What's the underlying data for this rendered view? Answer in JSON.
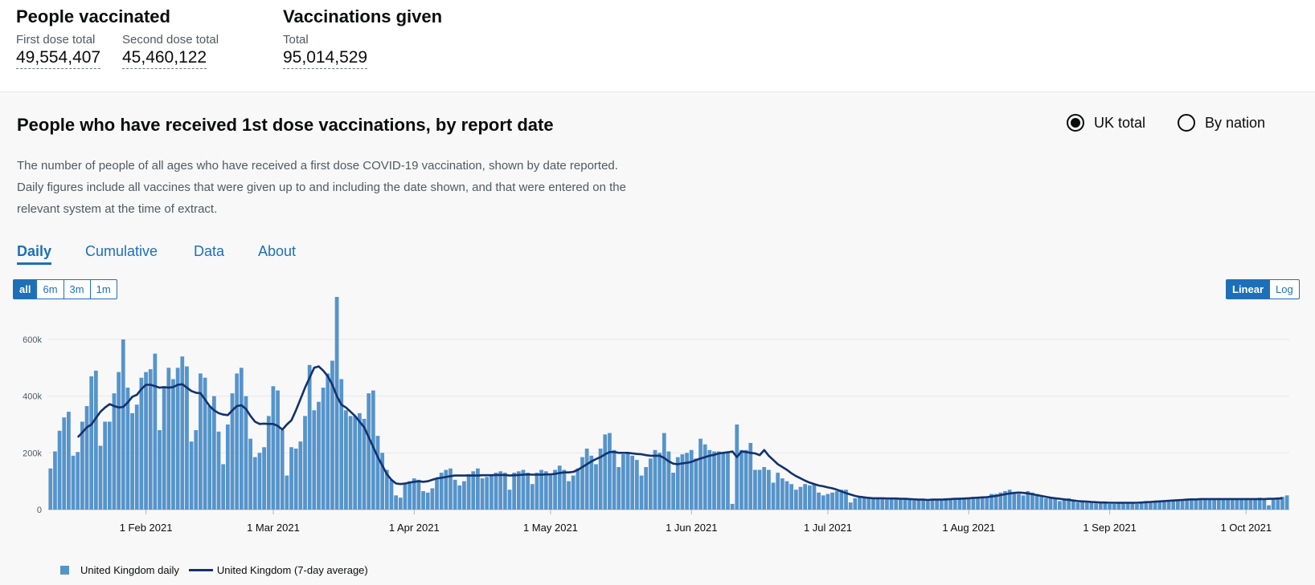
{
  "summary": {
    "people_title": "People vaccinated",
    "first_label": "First dose total",
    "first_value": "49,554,407",
    "second_label": "Second dose total",
    "second_value": "45,460,122",
    "given_title": "Vaccinations given",
    "total_label": "Total",
    "total_value": "95,014,529"
  },
  "card": {
    "title": "People who have received 1st dose vaccinations, by report date",
    "radio_uk": "UK total",
    "radio_nation": "By nation",
    "selected": "UK total",
    "description": "The number of people of all ages who have received a first dose COVID-19 vaccination, shown by date reported. Daily figures include all vaccines that were given up to and including the date shown, and that were entered on the relevant system at the time of extract.",
    "tabs": [
      "Daily",
      "Cumulative",
      "Data",
      "About"
    ],
    "range_buttons": [
      "all",
      "6m",
      "3m",
      "1m"
    ],
    "scale_buttons": [
      "Linear",
      "Log"
    ]
  },
  "colors": {
    "bar": "#5694ca",
    "line": "#12326e",
    "accent": "#1d70b8"
  },
  "chart_data": {
    "type": "bar",
    "start_date": "2021-01-11",
    "x_tick_labels": [
      "1 Feb 2021",
      "1 Mar 2021",
      "1 Apr 2021",
      "1 May 2021",
      "1 Jun 2021",
      "1 Jul 2021",
      "1 Aug 2021",
      "1 Sep 2021",
      "1 Oct 2021"
    ],
    "y_tick_labels": [
      "0",
      "200k",
      "400k",
      "600k"
    ],
    "ylim": [
      0,
      750000
    ],
    "grid": true,
    "legend_position": "bottom-left",
    "series": [
      {
        "name": "United Kingdom daily",
        "kind": "bar",
        "values": [
          145000,
          205000,
          278000,
          325000,
          345000,
          190000,
          203000,
          310000,
          365000,
          470000,
          490000,
          225000,
          310000,
          310000,
          410000,
          485000,
          600000,
          430000,
          340000,
          370000,
          465000,
          485000,
          495000,
          550000,
          280000,
          430000,
          500000,
          460000,
          500000,
          540000,
          505000,
          240000,
          280000,
          480000,
          465000,
          365000,
          400000,
          275000,
          160000,
          300000,
          410000,
          480000,
          500000,
          400000,
          250000,
          185000,
          200000,
          220000,
          330000,
          435000,
          420000,
          280000,
          120000,
          220000,
          215000,
          240000,
          330000,
          510000,
          350000,
          380000,
          430000,
          480000,
          525000,
          750000,
          460000,
          350000,
          330000,
          330000,
          340000,
          320000,
          410000,
          420000,
          260000,
          200000,
          140000,
          105000,
          50000,
          42000,
          95000,
          100000,
          110000,
          105000,
          65000,
          60000,
          75000,
          110000,
          130000,
          140000,
          145000,
          105000,
          85000,
          100000,
          125000,
          135000,
          145000,
          110000,
          115000,
          120000,
          130000,
          135000,
          130000,
          70000,
          130000,
          135000,
          140000,
          130000,
          90000,
          130000,
          140000,
          135000,
          120000,
          140000,
          155000,
          140000,
          100000,
          120000,
          145000,
          185000,
          215000,
          190000,
          160000,
          215000,
          265000,
          270000,
          210000,
          150000,
          195000,
          200000,
          190000,
          175000,
          120000,
          150000,
          180000,
          210000,
          200000,
          270000,
          205000,
          130000,
          185000,
          195000,
          200000,
          210000,
          180000,
          250000,
          230000,
          210000,
          205000,
          205000,
          200000,
          200000,
          20000,
          300000,
          210000,
          210000,
          235000,
          140000,
          140000,
          150000,
          140000,
          95000,
          130000,
          110000,
          100000,
          90000,
          70000,
          80000,
          90000,
          85000,
          90000,
          60000,
          50000,
          55000,
          60000,
          65000,
          70000,
          70000,
          25000,
          40000,
          45000,
          45000,
          45000,
          40000,
          40000,
          40000,
          35000,
          40000,
          40000,
          38000,
          35000,
          35000,
          32000,
          35000,
          38000,
          36000,
          35000,
          37000,
          35000,
          40000,
          38000,
          40000,
          42000,
          40000,
          42000,
          45000,
          44000,
          46000,
          42000,
          55000,
          55000,
          60000,
          65000,
          70000,
          60000,
          55000,
          50000,
          65000,
          60000,
          55000,
          45000,
          40000,
          45000,
          40000,
          30000,
          38000,
          40000,
          30000,
          25000,
          28000,
          25000,
          25000,
          22000,
          22000,
          25000,
          20000,
          20000,
          22000,
          25000,
          22000,
          22000,
          20000,
          28000,
          30000,
          25000,
          30000,
          30000,
          32000,
          30000,
          30000,
          32000,
          35000,
          35000,
          38000,
          38000,
          40000,
          35000,
          38000,
          38000,
          40000,
          35000,
          38000,
          40000,
          38000,
          38000,
          40000,
          38000,
          40000,
          42000,
          40000,
          15000,
          35000,
          40000,
          45000,
          50000
        ]
      },
      {
        "name": "United Kingdom (7-day average)",
        "kind": "line",
        "values": [
          null,
          null,
          null,
          null,
          null,
          null,
          255000,
          272000,
          290000,
          300000,
          323000,
          345000,
          360000,
          372000,
          365000,
          360000,
          362000,
          378000,
          398000,
          405000,
          425000,
          440000,
          440000,
          435000,
          430000,
          432000,
          430000,
          432000,
          440000,
          442000,
          430000,
          418000,
          412000,
          410000,
          388000,
          365000,
          350000,
          340000,
          335000,
          333000,
          350000,
          365000,
          368000,
          355000,
          330000,
          310000,
          302000,
          303000,
          302000,
          302000,
          295000,
          282000,
          300000,
          315000,
          350000,
          390000,
          430000,
          465000,
          500000,
          505000,
          490000,
          470000,
          440000,
          400000,
          370000,
          360000,
          345000,
          330000,
          310000,
          290000,
          255000,
          220000,
          185000,
          155000,
          125000,
          105000,
          92000,
          90000,
          92000,
          95000,
          98000,
          100000,
          98000,
          100000,
          105000,
          110000,
          112000,
          115000,
          118000,
          120000,
          120000,
          120000,
          120000,
          120000,
          120000,
          121000,
          121000,
          121000,
          122000,
          122000,
          122000,
          120000,
          121000,
          122000,
          123000,
          124000,
          123000,
          123000,
          123000,
          124000,
          124000,
          126000,
          129000,
          131000,
          131000,
          133000,
          140000,
          150000,
          160000,
          170000,
          178000,
          185000,
          195000,
          203000,
          203000,
          200000,
          200000,
          200000,
          198000,
          196000,
          195000,
          192000,
          190000,
          190000,
          190000,
          182000,
          170000,
          162000,
          160000,
          163000,
          165000,
          168000,
          175000,
          180000,
          185000,
          190000,
          193000,
          198000,
          200000,
          202000,
          205000,
          185000,
          205000,
          203000,
          200000,
          198000,
          192000,
          210000,
          190000,
          175000,
          160000,
          150000,
          140000,
          128000,
          118000,
          110000,
          102000,
          95000,
          90000,
          85000,
          82000,
          78000,
          75000,
          70000,
          64000,
          58000,
          53000,
          48000,
          45000,
          43000,
          41000,
          40000,
          40000,
          40000,
          39000,
          39000,
          39000,
          38000,
          38000,
          37000,
          36000,
          35000,
          35000,
          34000,
          35000,
          35000,
          35000,
          36000,
          37000,
          38000,
          38000,
          39000,
          40000,
          41000,
          42000,
          43000,
          44000,
          46000,
          48000,
          51000,
          54000,
          57000,
          59000,
          60000,
          59000,
          57000,
          54000,
          51000,
          48000,
          45000,
          42000,
          40000,
          38000,
          36000,
          34000,
          32000,
          30000,
          29000,
          28000,
          27000,
          26000,
          25000,
          25000,
          24000,
          24000,
          24000,
          24000,
          24000,
          24000,
          24000,
          25000,
          26000,
          27000,
          28000,
          29000,
          30000,
          31000,
          32000,
          33000,
          34000,
          35000,
          36000,
          36000,
          37000,
          37000,
          37000,
          37000,
          37000,
          37000,
          37000,
          37000,
          37000,
          37000,
          37000,
          37000,
          37000,
          37000,
          37000,
          38000,
          38000,
          39000,
          40000
        ]
      }
    ]
  }
}
